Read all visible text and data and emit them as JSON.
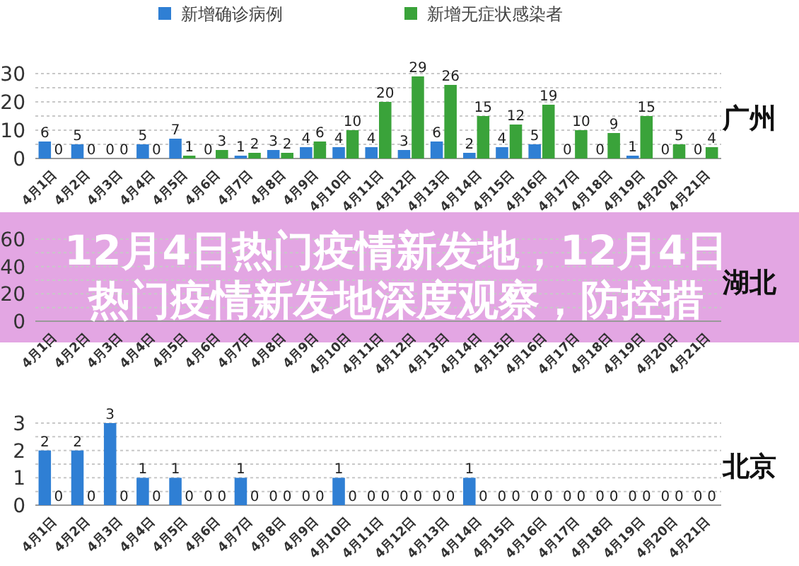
{
  "chart_data": [
    {
      "type": "bar",
      "title": "广州",
      "legend": "top",
      "grid": "y",
      "data_labels": true,
      "ylim": [
        0,
        30
      ],
      "yticks": [
        0,
        10,
        20,
        30
      ],
      "categories": [
        "4月1日",
        "4月2日",
        "4月3日",
        "4月4日",
        "4月5日",
        "4月6日",
        "4月7日",
        "4月8日",
        "4月9日",
        "4月10日",
        "4月11日",
        "4月12日",
        "4月13日",
        "4月14日",
        "4月15日",
        "4月16日",
        "4月17日",
        "4月18日",
        "4月19日",
        "4月20日",
        "4月21日"
      ],
      "series": [
        {
          "name": "新增确诊病例",
          "color": "#2f7fd4",
          "values": [
            6,
            5,
            0,
            5,
            7,
            0,
            1,
            3,
            4,
            4,
            4,
            3,
            6,
            2,
            4,
            5,
            0,
            0,
            1,
            0,
            0
          ]
        },
        {
          "name": "新增无症状感染者",
          "color": "#3aa33a",
          "values": [
            0,
            0,
            0,
            0,
            1,
            3,
            2,
            2,
            6,
            10,
            20,
            29,
            26,
            15,
            12,
            19,
            10,
            9,
            15,
            5,
            4
          ]
        }
      ]
    },
    {
      "type": "bar",
      "title": "湖北",
      "grid": "y",
      "ylim": [
        0,
        60
      ],
      "yticks": [
        0,
        20,
        40,
        60
      ],
      "annotations": [
        "12月4日热门疫情新发地，12月4日热门疫情新发地深度观察，防控措"
      ],
      "categories": [
        "4月1日",
        "4月2日",
        "4月3日",
        "4月4日",
        "4月5日",
        "4月6日",
        "4月7日",
        "4月8日",
        "4月9日",
        "4月10日",
        "4月11日",
        "4月12日",
        "4月13日",
        "4月14日",
        "4月15日",
        "4月16日",
        "4月17日",
        "4月18日",
        "4月19日",
        "4月20日",
        "4月21日"
      ],
      "series": [
        {
          "values": [
            null,
            null,
            null,
            null,
            null,
            null,
            null,
            null,
            null,
            null,
            null,
            null,
            null,
            null,
            null,
            null,
            null,
            null,
            null,
            null,
            null
          ]
        },
        {
          "values": [
            null,
            null,
            null,
            null,
            null,
            null,
            null,
            null,
            null,
            null,
            null,
            null,
            null,
            null,
            null,
            null,
            null,
            null,
            null,
            null,
            null
          ]
        }
      ]
    },
    {
      "type": "bar",
      "title": "北京",
      "grid": "y",
      "data_labels": true,
      "ylim": [
        0,
        3
      ],
      "yticks": [
        0,
        1,
        2,
        3
      ],
      "categories": [
        "4月1日",
        "4月2日",
        "4月3日",
        "4月4日",
        "4月5日",
        "4月6日",
        "4月7日",
        "4月8日",
        "4月9日",
        "4月10日",
        "4月11日",
        "4月12日",
        "4月13日",
        "4月14日",
        "4月15日",
        "4月16日",
        "4月17日",
        "4月18日",
        "4月19日",
        "4月20日",
        "4月21日"
      ],
      "series": [
        {
          "color": "#2f7fd4",
          "values": [
            2,
            2,
            3,
            1,
            1,
            0,
            1,
            0,
            0,
            1,
            0,
            0,
            0,
            1,
            0,
            0,
            0,
            0,
            0,
            0,
            0
          ]
        },
        {
          "color": "#3aa33a",
          "values": [
            0,
            0,
            0,
            0,
            0,
            0,
            0,
            0,
            0,
            0,
            0,
            0,
            0,
            0,
            0,
            0,
            0,
            0,
            0,
            0,
            0
          ]
        }
      ]
    }
  ]
}
